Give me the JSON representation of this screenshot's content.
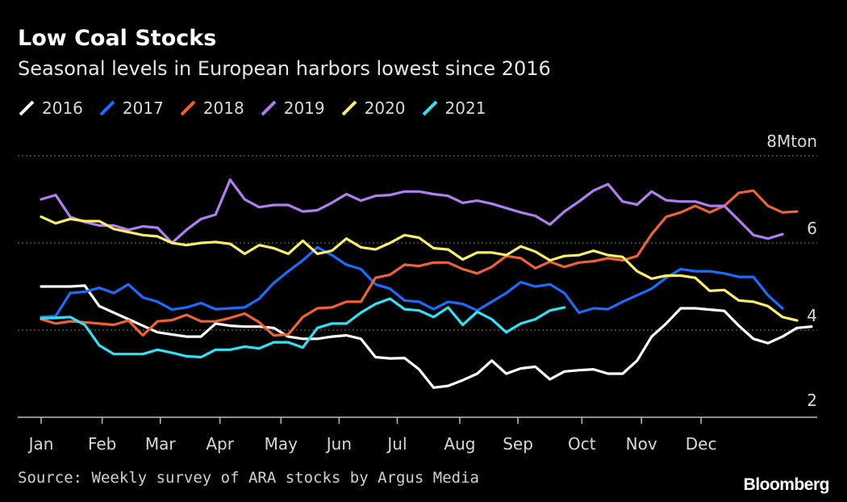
{
  "title": "Low Coal Stocks",
  "subtitle": "Seasonal levels in European harbors lowest since 2016",
  "source": "Source: Weekly survey of ARA stocks by Argus Media",
  "brand": "Bloomberg",
  "chart_data": {
    "type": "line",
    "y_unit_label": "8Mton",
    "ylim": [
      2,
      8
    ],
    "y_ticks": [
      2,
      4,
      6,
      8
    ],
    "y_tick_labels": [
      "2",
      "4",
      "6",
      "8Mton"
    ],
    "x_domain_weeks": [
      1,
      52
    ],
    "month_labels": [
      "Jan",
      "Feb",
      "Mar",
      "Apr",
      "May",
      "Jun",
      "Jul",
      "Aug",
      "Sep",
      "Oct",
      "Nov",
      "Dec"
    ],
    "month_tick_weeks": [
      1,
      5.2,
      9.2,
      13.3,
      17.5,
      21.5,
      25.5,
      29.8,
      33.8,
      38.2,
      42.3,
      46.4
    ],
    "grid": true,
    "legend_position": "top-left",
    "series": [
      {
        "name": "2016",
        "color": "#ffffff",
        "values": [
          5.0,
          5.0,
          5.0,
          5.02,
          4.55,
          4.4,
          4.25,
          4.1,
          3.95,
          3.9,
          3.85,
          3.85,
          4.15,
          4.1,
          4.08,
          4.08,
          4.05,
          3.85,
          3.8,
          3.8,
          3.85,
          3.88,
          3.8,
          3.38,
          3.35,
          3.36,
          3.1,
          2.68,
          2.72,
          2.85,
          3.0,
          3.3,
          3.0,
          3.12,
          3.16,
          2.87,
          3.05,
          3.08,
          3.1,
          3.0,
          3.0,
          3.3,
          3.85,
          4.15,
          4.5,
          4.5,
          4.47,
          4.44,
          4.1,
          3.8,
          3.7,
          3.85,
          4.05,
          4.08
        ]
      },
      {
        "name": "2017",
        "color": "#1a6cff",
        "values": [
          4.3,
          4.32,
          4.85,
          4.88,
          4.97,
          4.85,
          5.05,
          4.75,
          4.65,
          4.47,
          4.52,
          4.62,
          4.48,
          4.5,
          4.52,
          4.72,
          5.08,
          5.35,
          5.6,
          5.9,
          5.72,
          5.5,
          5.4,
          5.05,
          4.95,
          4.68,
          4.65,
          4.48,
          4.65,
          4.6,
          4.45,
          4.65,
          4.85,
          5.1,
          5.0,
          5.05,
          4.85,
          4.4,
          4.5,
          4.48,
          4.65,
          4.8,
          4.95,
          5.2,
          5.4,
          5.35,
          5.35,
          5.3,
          5.22,
          5.22,
          4.8,
          4.5
        ]
      },
      {
        "name": "2018",
        "color": "#f06236",
        "values": [
          4.25,
          4.15,
          4.2,
          4.18,
          4.15,
          4.12,
          4.22,
          3.88,
          4.2,
          4.23,
          4.35,
          4.2,
          4.2,
          4.28,
          4.38,
          4.18,
          3.88,
          3.9,
          4.3,
          4.5,
          4.52,
          4.65,
          4.65,
          5.2,
          5.27,
          5.5,
          5.47,
          5.55,
          5.55,
          5.4,
          5.3,
          5.45,
          5.7,
          5.65,
          5.42,
          5.57,
          5.45,
          5.55,
          5.58,
          5.65,
          5.6,
          5.7,
          6.2,
          6.6,
          6.7,
          6.85,
          6.7,
          6.85,
          7.15,
          7.2,
          6.85,
          6.7,
          6.72
        ]
      },
      {
        "name": "2019",
        "color": "#b07ef0",
        "values": [
          7.0,
          7.1,
          6.6,
          6.48,
          6.4,
          6.4,
          6.3,
          6.38,
          6.35,
          6.0,
          6.3,
          6.55,
          6.65,
          7.45,
          7.0,
          6.82,
          6.87,
          6.87,
          6.72,
          6.75,
          6.92,
          7.12,
          6.97,
          7.08,
          7.1,
          7.18,
          7.18,
          7.12,
          7.08,
          6.92,
          6.97,
          6.9,
          6.8,
          6.7,
          6.62,
          6.42,
          6.72,
          6.95,
          7.2,
          7.35,
          6.95,
          6.88,
          7.18,
          6.98,
          6.95,
          6.95,
          6.85,
          6.85,
          6.52,
          6.18,
          6.1,
          6.2
        ]
      },
      {
        "name": "2020",
        "color": "#fbee6a",
        "values": [
          6.6,
          6.45,
          6.55,
          6.5,
          6.5,
          6.32,
          6.25,
          6.18,
          6.15,
          6.0,
          5.95,
          6.0,
          6.02,
          5.98,
          5.75,
          5.95,
          5.88,
          5.75,
          6.05,
          5.75,
          5.82,
          6.1,
          5.9,
          5.85,
          6.0,
          6.18,
          6.12,
          5.88,
          5.85,
          5.62,
          5.78,
          5.78,
          5.72,
          5.92,
          5.8,
          5.6,
          5.7,
          5.72,
          5.82,
          5.72,
          5.68,
          5.35,
          5.18,
          5.25,
          5.25,
          5.2,
          4.9,
          4.92,
          4.68,
          4.65,
          4.55,
          4.3,
          4.22
        ]
      },
      {
        "name": "2021",
        "color": "#2ee3f5",
        "values": [
          4.27,
          4.28,
          4.3,
          4.12,
          3.65,
          3.45,
          3.45,
          3.45,
          3.55,
          3.48,
          3.4,
          3.38,
          3.55,
          3.55,
          3.62,
          3.58,
          3.72,
          3.72,
          3.6,
          4.05,
          4.15,
          4.15,
          4.4,
          4.6,
          4.72,
          4.48,
          4.45,
          4.3,
          4.52,
          4.12,
          4.42,
          4.25,
          3.95,
          4.15,
          4.25,
          4.45,
          4.52
        ]
      }
    ]
  }
}
